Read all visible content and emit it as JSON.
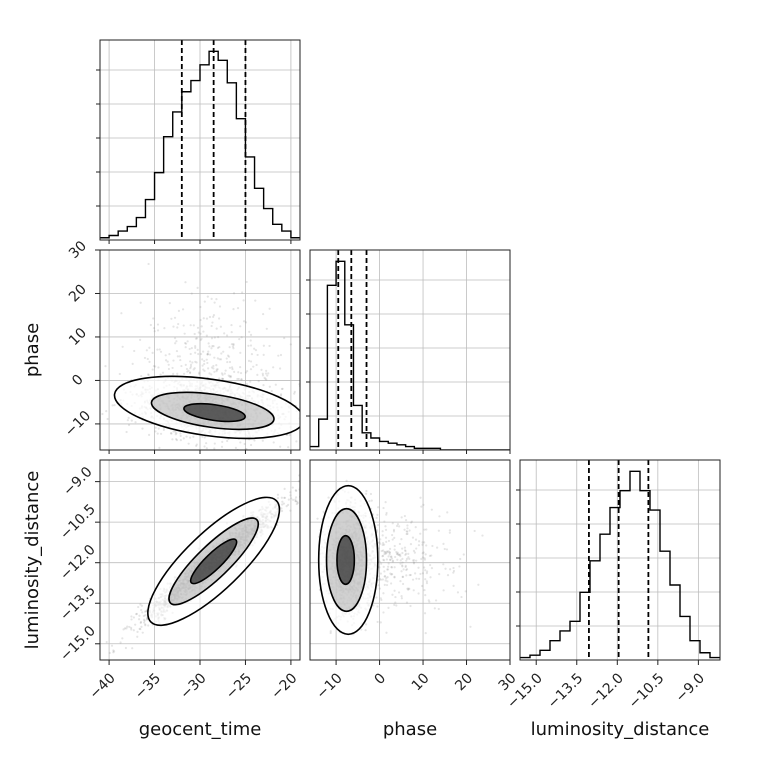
{
  "chart_data": {
    "type": "corner",
    "parameters": [
      "geocent_time",
      "phase",
      "luminosity_distance"
    ],
    "axis_labels": {
      "geocent_time": "geocent_time",
      "phase": "phase",
      "luminosity_distance": "luminosity_distance"
    },
    "ranges": {
      "geocent_time": [
        -41,
        -19
      ],
      "phase": [
        -16,
        30
      ],
      "luminosity_distance": [
        -15.6,
        -8.2
      ]
    },
    "ticks": {
      "geocent_time": [
        -40,
        -35,
        -30,
        -25,
        -20
      ],
      "phase": [
        -10,
        0,
        10,
        20,
        30
      ],
      "phase_y": [
        -10,
        0,
        10,
        20,
        30
      ],
      "luminosity_distance": [
        -15.0,
        -13.5,
        -12.0,
        -10.5,
        -9.0
      ]
    },
    "tick_labels": {
      "geocent_time": [
        "−40",
        "−35",
        "−30",
        "−25",
        "−20"
      ],
      "phase": [
        "−10",
        "0",
        "10",
        "20",
        "30"
      ],
      "luminosity_distance": [
        "−15.0",
        "−13.5",
        "−12.0",
        "−10.5",
        "−9.0"
      ]
    },
    "quantiles": {
      "geocent_time": [
        -32,
        -28.5,
        -25
      ],
      "phase": [
        -9.5,
        -6.5,
        -3.0
      ],
      "luminosity_distance": [
        -13.05,
        -11.95,
        -10.85
      ]
    },
    "histograms": {
      "geocent_time": {
        "bin_start": -41,
        "bin_width": 1,
        "counts": [
          1,
          2,
          4,
          6,
          10,
          18,
          30,
          46,
          57,
          66,
          71,
          78,
          84,
          80,
          70,
          54,
          37,
          23,
          14,
          7,
          4,
          1
        ]
      },
      "phase": {
        "bin_start": -16,
        "bin_width": 2,
        "counts": [
          2,
          18,
          96,
          110,
          73,
          26,
          10,
          7,
          5,
          4,
          3,
          2,
          1,
          1,
          1,
          0,
          0,
          0,
          0,
          0,
          0,
          0,
          0
        ]
      },
      "luminosity_distance": {
        "bin_start": -15.6,
        "bin_width": 0.37,
        "counts": [
          1,
          2,
          4,
          8,
          12,
          16,
          28,
          41,
          52,
          63,
          70,
          78,
          70,
          62,
          45,
          31,
          18,
          8,
          3,
          1
        ]
      }
    },
    "grid": true
  }
}
